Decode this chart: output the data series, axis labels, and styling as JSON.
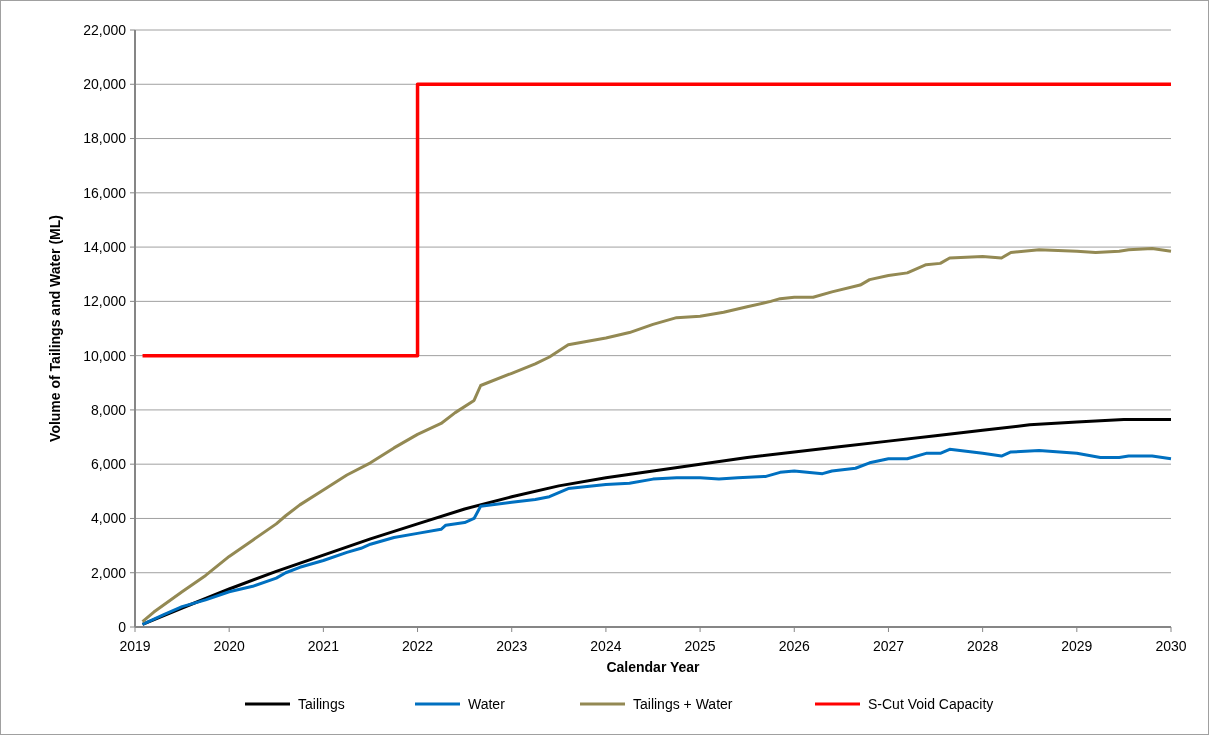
{
  "chart_data": {
    "type": "line",
    "xlabel": "Calendar Year",
    "ylabel": "Volume of Tailings and Water (ML)",
    "xlim": [
      2019,
      2030
    ],
    "xticks": [
      2019,
      2020,
      2021,
      2022,
      2023,
      2024,
      2025,
      2026,
      2027,
      2028,
      2029,
      2030
    ],
    "ylim": [
      0,
      22000
    ],
    "yticks": [
      {
        "value": 0,
        "label": "0"
      },
      {
        "value": 2000,
        "label": "2,000"
      },
      {
        "value": 4000,
        "label": "4,000"
      },
      {
        "value": 6000,
        "label": "6,000"
      },
      {
        "value": 8000,
        "label": "8,000"
      },
      {
        "value": 10000,
        "label": "10,000"
      },
      {
        "value": 12000,
        "label": "12,000"
      },
      {
        "value": 14000,
        "label": "14,000"
      },
      {
        "value": 16000,
        "label": "16,000"
      },
      {
        "value": 18000,
        "label": "18,000"
      },
      {
        "value": 20000,
        "label": "20,000"
      },
      {
        "value": 22000,
        "label": "22,000"
      }
    ],
    "grid": "y",
    "legend": "bottom",
    "marker": "none",
    "line_style": "solid",
    "series": [
      {
        "name": "Tailings",
        "color": "#000000",
        "x": [
          2019.08,
          2019.5,
          2020,
          2020.5,
          2021,
          2021.5,
          2022,
          2022.5,
          2023,
          2023.5,
          2024,
          2024.5,
          2025,
          2025.5,
          2026,
          2026.5,
          2027,
          2027.5,
          2028,
          2028.5,
          2029,
          2029.5,
          2030
        ],
        "values": [
          100,
          700,
          1400,
          2050,
          2650,
          3250,
          3800,
          4350,
          4800,
          5200,
          5500,
          5750,
          6000,
          6250,
          6450,
          6650,
          6850,
          7050,
          7250,
          7450,
          7550,
          7650,
          7650
        ]
      },
      {
        "name": "Water",
        "color": "#0070c0",
        "x": [
          2019.08,
          2019.3,
          2019.5,
          2019.75,
          2020,
          2020.25,
          2020.5,
          2020.6,
          2020.75,
          2021,
          2021.25,
          2021.4,
          2021.5,
          2021.75,
          2022,
          2022.25,
          2022.3,
          2022.5,
          2022.6,
          2022.67,
          2023,
          2023.25,
          2023.4,
          2023.6,
          2024,
          2024.25,
          2024.5,
          2024.75,
          2025,
          2025.2,
          2025.4,
          2025.7,
          2025.85,
          2026,
          2026.3,
          2026.4,
          2026.65,
          2026.8,
          2027,
          2027.2,
          2027.4,
          2027.55,
          2027.65,
          2028,
          2028.2,
          2028.3,
          2028.6,
          2029,
          2029.25,
          2029.45,
          2029.55,
          2029.8,
          2030
        ],
        "values": [
          100,
          450,
          750,
          1000,
          1300,
          1500,
          1800,
          2000,
          2200,
          2450,
          2750,
          2900,
          3050,
          3300,
          3450,
          3600,
          3750,
          3850,
          4000,
          4450,
          4600,
          4700,
          4800,
          5100,
          5250,
          5300,
          5450,
          5500,
          5500,
          5450,
          5500,
          5550,
          5700,
          5750,
          5650,
          5750,
          5850,
          6050,
          6200,
          6200,
          6400,
          6400,
          6550,
          6400,
          6300,
          6450,
          6500,
          6400,
          6250,
          6250,
          6300,
          6300,
          6200
        ]
      },
      {
        "name": "Tailings + Water",
        "color": "#938953",
        "x": [
          2019.08,
          2019.2,
          2019.4,
          2019.5,
          2019.75,
          2020,
          2020.25,
          2020.5,
          2020.6,
          2020.75,
          2021,
          2021.25,
          2021.5,
          2021.75,
          2022,
          2022.25,
          2022.4,
          2022.6,
          2022.67,
          2023,
          2023.25,
          2023.4,
          2023.6,
          2024,
          2024.25,
          2024.5,
          2024.75,
          2025,
          2025.25,
          2025.5,
          2025.75,
          2025.85,
          2026,
          2026.2,
          2026.4,
          2026.7,
          2026.8,
          2027,
          2027.2,
          2027.4,
          2027.55,
          2027.65,
          2028,
          2028.2,
          2028.3,
          2028.6,
          2029,
          2029.2,
          2029.45,
          2029.55,
          2029.8,
          2030
        ],
        "values": [
          200,
          550,
          1050,
          1300,
          1900,
          2600,
          3200,
          3800,
          4100,
          4500,
          5050,
          5600,
          6050,
          6600,
          7100,
          7500,
          7900,
          8350,
          8900,
          9350,
          9700,
          9950,
          10400,
          10650,
          10850,
          11150,
          11400,
          11450,
          11600,
          11800,
          12000,
          12100,
          12150,
          12150,
          12350,
          12600,
          12800,
          12950,
          13050,
          13350,
          13400,
          13600,
          13650,
          13600,
          13800,
          13900,
          13850,
          13800,
          13850,
          13900,
          13950,
          13850
        ]
      },
      {
        "name": "S-Cut Void Capacity",
        "color": "#ff0000",
        "type": "step",
        "x": [
          2019.08,
          2022,
          2030
        ],
        "values": [
          10000,
          20000,
          20000
        ]
      }
    ]
  }
}
